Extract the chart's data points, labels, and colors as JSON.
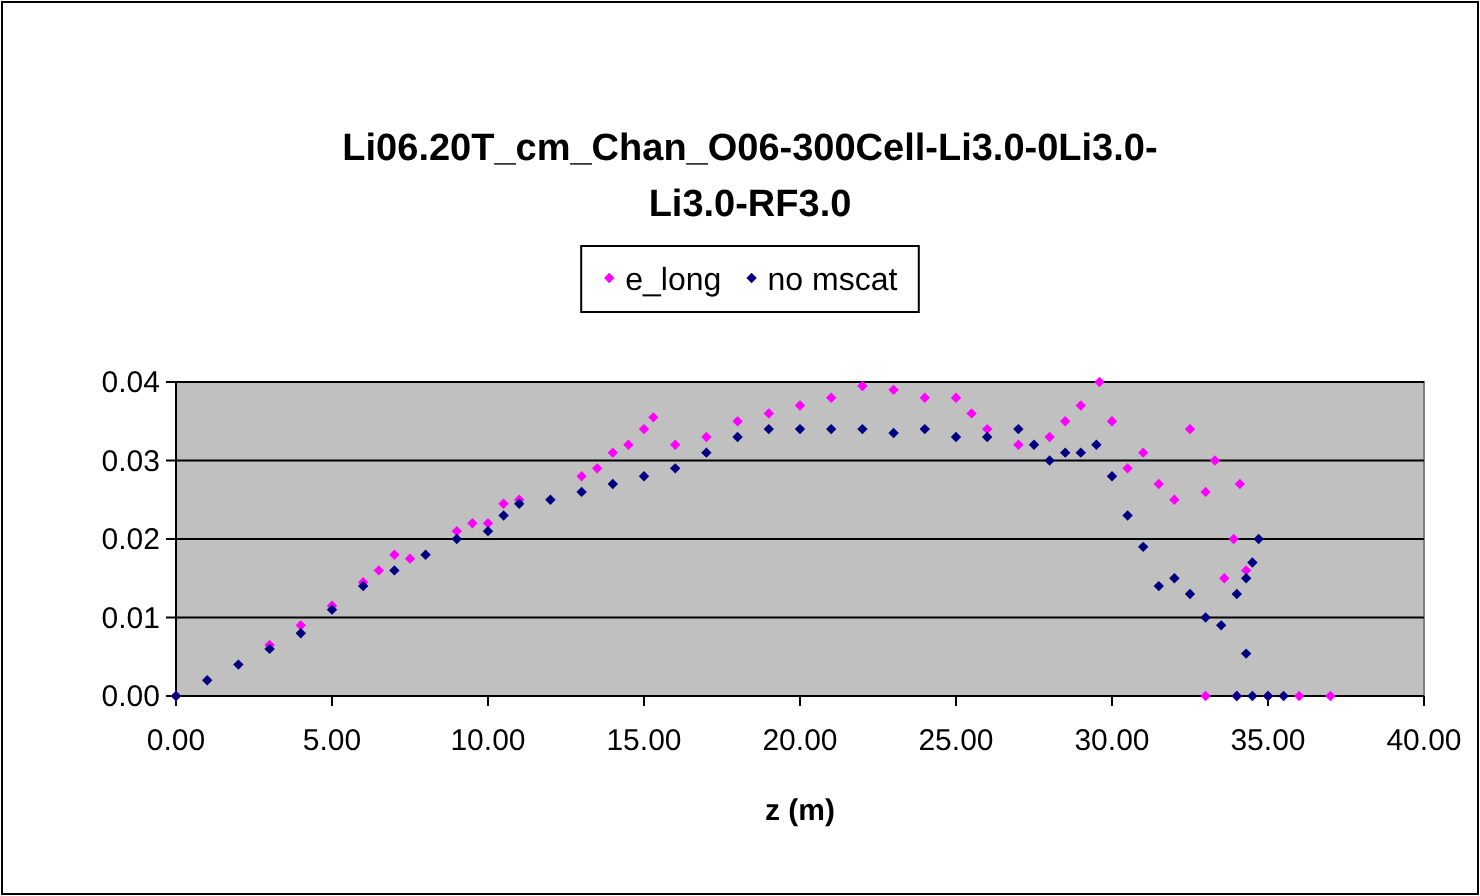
{
  "chart_data": {
    "type": "scatter",
    "title": "Li06.20T_cm_Chan_O06-300Cell-Li3.0-0Li3.0-Li3.0-RF3.0",
    "xlabel": "z (m)",
    "xlim": [
      0,
      40
    ],
    "ylim": [
      0,
      0.04
    ],
    "xticks": [
      {
        "value": 0,
        "label": "0.00"
      },
      {
        "value": 5,
        "label": "5.00"
      },
      {
        "value": 10,
        "label": "10.00"
      },
      {
        "value": 15,
        "label": "15.00"
      },
      {
        "value": 20,
        "label": "20.00"
      },
      {
        "value": 25,
        "label": "25.00"
      },
      {
        "value": 30,
        "label": "30.00"
      },
      {
        "value": 35,
        "label": "35.00"
      },
      {
        "value": 40,
        "label": "40.00"
      }
    ],
    "yticks": [
      {
        "value": 0,
        "label": "0.00"
      },
      {
        "value": 0.01,
        "label": "0.01"
      },
      {
        "value": 0.02,
        "label": "0.02"
      },
      {
        "value": 0.03,
        "label": "0.03"
      },
      {
        "value": 0.04,
        "label": "0.04"
      }
    ],
    "grid": "y",
    "legend": "top",
    "marker": "diamond",
    "series": [
      {
        "name": "e_long",
        "color": "#ff00ff",
        "x": [
          0,
          3,
          4,
          5,
          6,
          6.5,
          7,
          7.5,
          9,
          9.5,
          10,
          10.5,
          11,
          13,
          13.5,
          14,
          14.5,
          15,
          15.3,
          16,
          17,
          18,
          19,
          20,
          21,
          22,
          23,
          24,
          25,
          25.5,
          26,
          27,
          28,
          28.5,
          29,
          29.6,
          30,
          30.5,
          31,
          31.5,
          32,
          32.5,
          33,
          33.3,
          33.6,
          33.9,
          34.1,
          34.3,
          33,
          34,
          35,
          36,
          37
        ],
        "values": [
          0,
          0.0065,
          0.009,
          0.0115,
          0.0145,
          0.016,
          0.018,
          0.0175,
          0.021,
          0.022,
          0.022,
          0.0245,
          0.025,
          0.028,
          0.029,
          0.031,
          0.032,
          0.034,
          0.0355,
          0.032,
          0.033,
          0.035,
          0.036,
          0.037,
          0.038,
          0.0395,
          0.039,
          0.038,
          0.038,
          0.036,
          0.034,
          0.032,
          0.033,
          0.035,
          0.037,
          0.04,
          0.035,
          0.029,
          0.031,
          0.027,
          0.025,
          0.034,
          0.026,
          0.03,
          0.015,
          0.02,
          0.027,
          0.016,
          0,
          0,
          0,
          0,
          0
        ]
      },
      {
        "name": "no mscat",
        "color": "#000080",
        "x": [
          0,
          1,
          2,
          3,
          4,
          5,
          6,
          7,
          8,
          9,
          10,
          10.5,
          11,
          12,
          13,
          14,
          15,
          16,
          17,
          18,
          19,
          20,
          21,
          22,
          23,
          24,
          25,
          26,
          27,
          27.5,
          28,
          28.5,
          29,
          29.5,
          30,
          30.5,
          31,
          31.5,
          32,
          32.5,
          33,
          33.5,
          34,
          34.3,
          34.5,
          34.7,
          34.3,
          34,
          34.5,
          35,
          35.5
        ],
        "values": [
          0,
          0.002,
          0.004,
          0.006,
          0.008,
          0.011,
          0.014,
          0.016,
          0.018,
          0.02,
          0.021,
          0.023,
          0.0245,
          0.025,
          0.026,
          0.027,
          0.028,
          0.029,
          0.031,
          0.033,
          0.034,
          0.034,
          0.034,
          0.034,
          0.0335,
          0.034,
          0.033,
          0.033,
          0.034,
          0.032,
          0.03,
          0.031,
          0.031,
          0.032,
          0.028,
          0.023,
          0.019,
          0.014,
          0.015,
          0.013,
          0.01,
          0.009,
          0.013,
          0.015,
          0.017,
          0.02,
          0.0054,
          0,
          0,
          0,
          0
        ]
      }
    ]
  }
}
